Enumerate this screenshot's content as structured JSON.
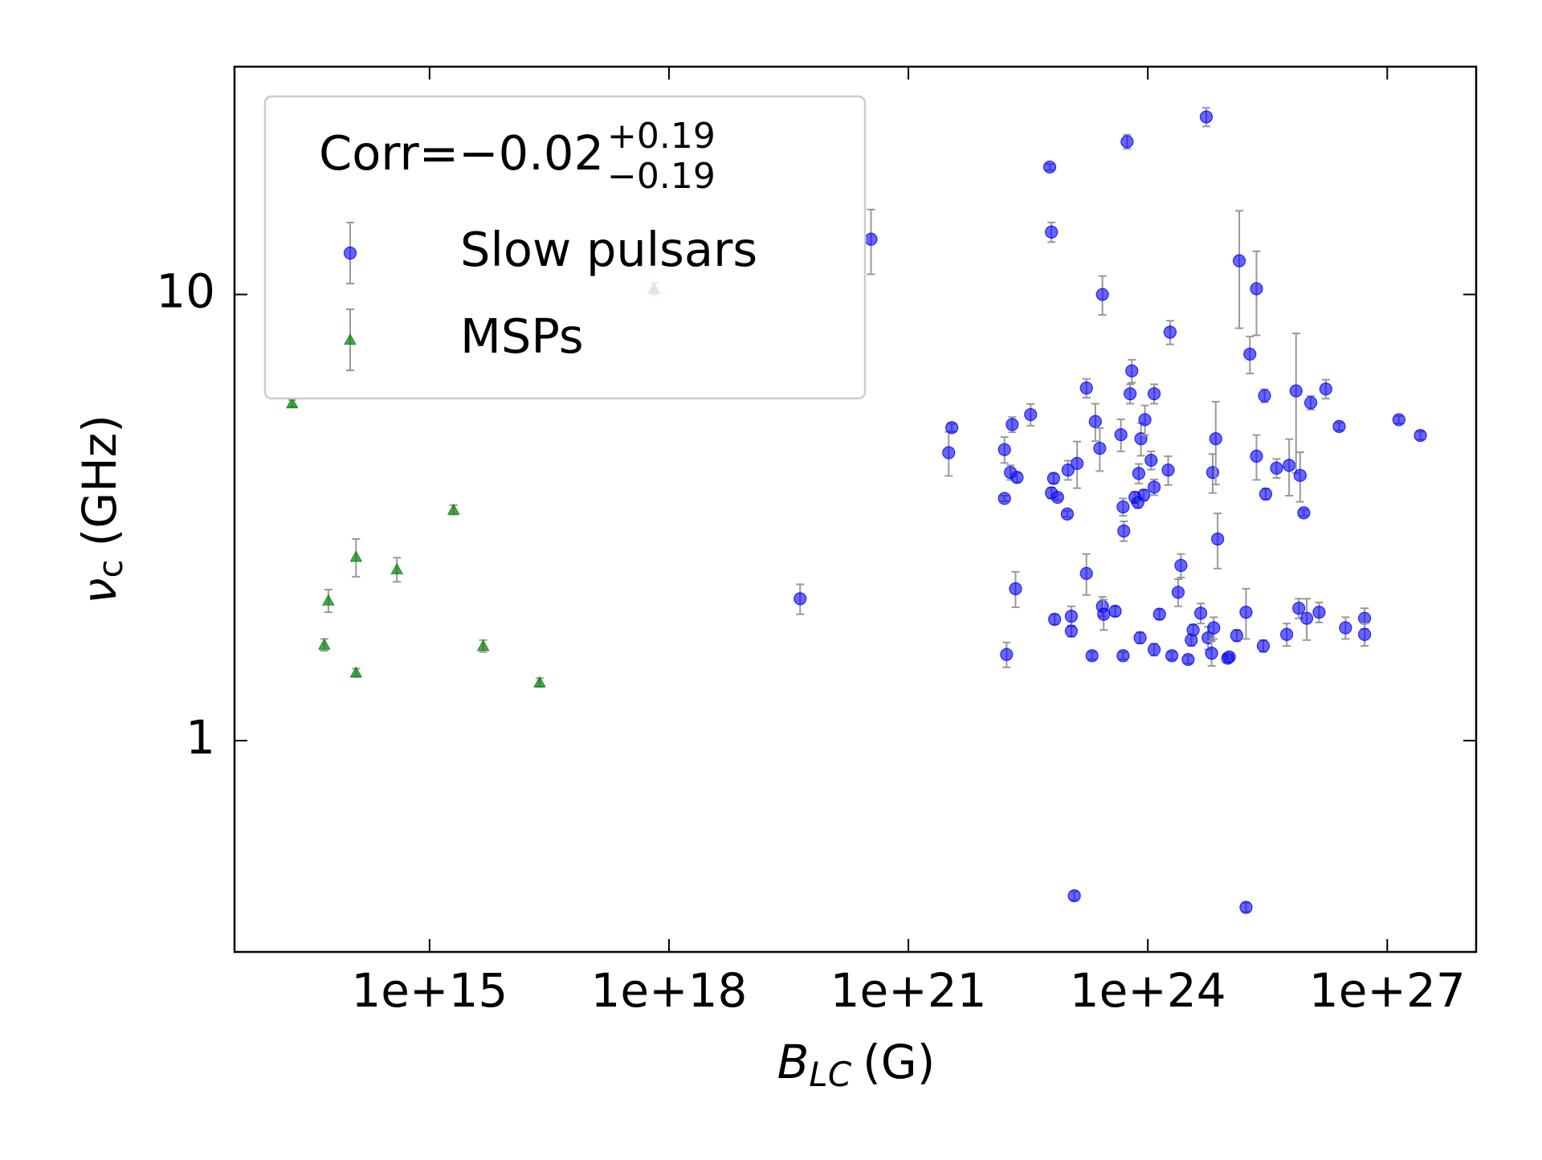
{
  "chart_data": {
    "type": "scatter",
    "xscale": "log",
    "yscale": "log",
    "xlabel": {
      "symbol": "B",
      "subscript": "LC",
      "unit": "(G)"
    },
    "ylabel": {
      "symbol": "ν",
      "subscript": "c",
      "unit": "(GHz)"
    },
    "legend_title": "Corr=−0.02",
    "legend_title_sup": "+0.19",
    "legend_title_sub": "−0.19",
    "legend_position": "upper left",
    "xlim": [
      3600000000000.0,
      1.3e+28
    ],
    "ylim": [
      0.336,
      32.4
    ],
    "xticks": [
      {
        "value": 1000000000000000.0,
        "label": "1e+15"
      },
      {
        "value": 1e+18,
        "label": "1e+18"
      },
      {
        "value": 1e+21,
        "label": "1e+21"
      },
      {
        "value": 1e+24,
        "label": "1e+24"
      },
      {
        "value": 1e+27,
        "label": "1e+27"
      }
    ],
    "yticks": [
      1,
      10
    ],
    "series": [
      {
        "name": "Slow pulsars",
        "marker": "circle",
        "color": "#0000ff",
        "x": [
          4.4e+19,
          3.4e+20,
          3.2e+21,
          3.5e+21,
          1.6e+22,
          1.6e+22,
          1.7e+22,
          1.9e+22,
          2e+22,
          2.2e+22,
          2.3e+22,
          3.4e+22,
          5.9e+22,
          6.2e+22,
          6.2e+22,
          6.6e+22,
          6.8e+22,
          7.4e+22,
          9.8e+22,
          1e+23,
          1.1e+23,
          1.1e+23,
          1.2e+23,
          1.3e+23,
          1.7e+23,
          1.7e+23,
          2e+23,
          2.2e+23,
          2.5e+23,
          2.7e+23,
          2.7e+23,
          2.8e+23,
          3.9e+23,
          4.6e+23,
          4.9e+23,
          4.9e+23,
          5e+23,
          5.5e+23,
          6e+23,
          6.3e+23,
          6.9e+23,
          7.5e+23,
          7.7e+23,
          8e+23,
          8.2e+23,
          8.9e+23,
          9.2e+23,
          1.1e+24,
          1.2e+24,
          1.2e+24,
          1.2e+24,
          1.4e+24,
          1.8e+24,
          1.9e+24,
          2e+24,
          2.4e+24,
          2.6e+24,
          3.2e+24,
          3.5e+24,
          3.7e+24,
          4.6e+24,
          5.4e+24,
          5.7e+24,
          6.3e+24,
          6.5e+24,
          6.7e+24,
          7.1e+24,
          7.5e+24,
          1e+25,
          1.05e+25,
          1.3e+25,
          1.4e+25,
          1.7e+25,
          1.7e+25,
          1.9e+25,
          2.3e+25,
          2.3e+25,
          2.8e+25,
          2.9e+25,
          3e+25,
          4.1e+25,
          5.5e+25,
          5.9e+25,
          7.2e+25,
          7.8e+25,
          8.1e+25,
          9e+25,
          9.8e+25,
          1.1e+26,
          1.4e+26,
          1.7e+26,
          2.5e+26,
          3e+26,
          5.2e+26,
          5.2e+26,
          1.4e+27,
          2.6e+27
        ],
        "values": [
          2.08,
          13.3,
          4.42,
          5.03,
          3.49,
          4.49,
          1.56,
          3.99,
          5.11,
          2.19,
          3.89,
          5.38,
          19.3,
          13.8,
          3.59,
          3.87,
          1.87,
          3.51,
          3.22,
          4.04,
          1.9,
          1.76,
          0.449,
          4.18,
          6.17,
          2.37,
          1.55,
          5.19,
          4.52,
          10,
          2.0,
          1.92,
          1.95,
          4.85,
          1.55,
          3.34,
          2.95,
          22,
          5.99,
          6.74,
          3.51,
          3.42,
          3.97,
          1.7,
          4.75,
          3.55,
          5.24,
          4.25,
          3.7,
          5.99,
          1.6,
          1.92,
          4.04,
          8.23,
          1.55,
          2.15,
          2.47,
          1.52,
          1.68,
          1.77,
          1.93,
          25,
          1.7,
          1.57,
          3.99,
          1.79,
          4.75,
          2.83,
          1.53,
          1.54,
          1.72,
          11.9,
          1.94,
          0.423,
          7.35,
          10.3,
          4.34,
          1.63,
          5.93,
          3.57,
          4.08,
          1.73,
          4.14,
          6.08,
          1.98,
          3.93,
          3.24,
          1.88,
          5.72,
          1.94,
          6.14,
          5.06,
          1.79,
          1.88,
          1.73,
          5.24,
          4.83
        ],
        "yerr": [
          0.16,
          2.2,
          0.5,
          0.1,
          0.05,
          0.3,
          0.1,
          0.15,
          0.2,
          0.2,
          0.1,
          0.3,
          0.3,
          0.7,
          0.1,
          0.1,
          0.05,
          0.05,
          0.05,
          0.2,
          0.1,
          0.05,
          0.01,
          0.5,
          0.3,
          0.25,
          0.03,
          0.5,
          0.5,
          1.0,
          0.1,
          0.15,
          0.05,
          0.4,
          0.03,
          0.15,
          0.15,
          0.8,
          0.3,
          0.4,
          0.1,
          0.1,
          0.2,
          0.05,
          0.4,
          0.1,
          0.4,
          0.2,
          0.15,
          0.3,
          0.05,
          0.05,
          0.3,
          0.5,
          0.03,
          0.15,
          0.15,
          0.03,
          0.05,
          0.05,
          0.1,
          1.2,
          0.1,
          0.1,
          0.4,
          0.1,
          1.0,
          0.4,
          0.03,
          0.03,
          0.05,
          3.5,
          0.25,
          0.01,
          0.7,
          2.2,
          0.5,
          0.05,
          0.2,
          0.1,
          0.2,
          0.1,
          0.6,
          2.1,
          0.1,
          0.5,
          0.05,
          0.2,
          0.2,
          0.1,
          0.3,
          0.1,
          0.1,
          0.1,
          0.1,
          0.1,
          0.1
        ]
      },
      {
        "name": "MSPs",
        "marker": "triangle",
        "color": "#008000",
        "x": [
          19000000000000.0,
          48000000000000.0,
          54000000000000.0,
          120000000000000.0,
          120000000000000.0,
          390000000000000.0,
          2000000000000000.0,
          4700000000000000.0,
          2.4e+16,
          6.5e+17
        ],
        "values": [
          5.7,
          1.64,
          2.06,
          2.58,
          1.42,
          2.42,
          3.29,
          1.63,
          1.35,
          10.3
        ],
        "yerr": [
          0.1,
          0.05,
          0.12,
          0.25,
          0.03,
          0.15,
          0.08,
          0.05,
          0.03,
          0.3
        ]
      }
    ]
  }
}
